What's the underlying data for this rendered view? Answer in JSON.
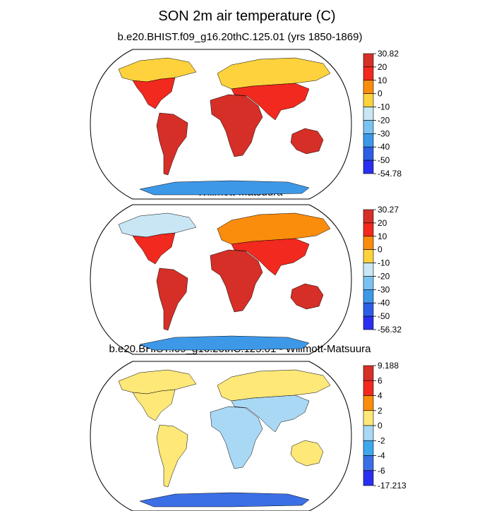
{
  "title": "SON 2m air temperature (C)",
  "panels": [
    {
      "title": "b.e20.BHIST.f09_g16.20thC.125.01 (yrs 1850-1869)",
      "colorbar": {
        "labels": [
          "30.82",
          "20",
          "10",
          "0",
          "-10",
          "-20",
          "-30",
          "-40",
          "-50",
          "-54.78"
        ],
        "colors": [
          "#d62f27",
          "#f2291e",
          "#fb8d0d",
          "#fdd23c",
          "#c9e6f5",
          "#7ac3f0",
          "#3e98e8",
          "#2d5ee6",
          "#2a2ef0"
        ]
      },
      "regions": [
        {
          "name": "north-america-north",
          "color": "#fdd23c"
        },
        {
          "name": "north-america-south",
          "color": "#f2291e"
        },
        {
          "name": "south-america",
          "color": "#d62f27"
        },
        {
          "name": "africa",
          "color": "#d62f27"
        },
        {
          "name": "eurasia",
          "color": "#fdd23c"
        },
        {
          "name": "south-asia",
          "color": "#f2291e"
        },
        {
          "name": "australia",
          "color": "#d62f27"
        },
        {
          "name": "antarctica",
          "color": "#3e98e8"
        }
      ]
    },
    {
      "title": "Willmott-Matsuura",
      "colorbar": {
        "labels": [
          "30.27",
          "20",
          "10",
          "0",
          "-10",
          "-20",
          "-30",
          "-40",
          "-50",
          "-56.32"
        ],
        "colors": [
          "#d62f27",
          "#f2291e",
          "#fb8d0d",
          "#fdd23c",
          "#c9e6f5",
          "#7ac3f0",
          "#3e98e8",
          "#2d5ee6",
          "#2a2ef0"
        ]
      },
      "regions": [
        {
          "name": "north-america-north",
          "color": "#c9e6f5"
        },
        {
          "name": "north-america-south",
          "color": "#f2291e"
        },
        {
          "name": "south-america",
          "color": "#d62f27"
        },
        {
          "name": "africa",
          "color": "#d62f27"
        },
        {
          "name": "eurasia",
          "color": "#fb8d0d"
        },
        {
          "name": "south-asia",
          "color": "#f2291e"
        },
        {
          "name": "australia",
          "color": "#d62f27"
        },
        {
          "name": "antarctica",
          "color": "#3e98e8"
        }
      ]
    },
    {
      "title": "b.e20.BHIST.f09_g16.20thC.125.01 - Willmott-Matsuura",
      "colorbar": {
        "labels": [
          "9.188",
          "6",
          "4",
          "2",
          "0",
          "-2",
          "-4",
          "-6",
          "-17.213"
        ],
        "colors": [
          "#d62f27",
          "#f2291e",
          "#fb8d0d",
          "#fde878",
          "#a9d8f5",
          "#3ea8ec",
          "#3a6fe6",
          "#2a2ef0"
        ]
      },
      "regions": [
        {
          "name": "north-america-north",
          "color": "#fde878"
        },
        {
          "name": "north-america-south",
          "color": "#fde878"
        },
        {
          "name": "south-america",
          "color": "#fde878"
        },
        {
          "name": "africa",
          "color": "#a9d8f5"
        },
        {
          "name": "eurasia",
          "color": "#fde878"
        },
        {
          "name": "south-asia",
          "color": "#a9d8f5"
        },
        {
          "name": "australia",
          "color": "#fde878"
        },
        {
          "name": "antarctica",
          "color": "#3a6fe6"
        }
      ]
    }
  ]
}
